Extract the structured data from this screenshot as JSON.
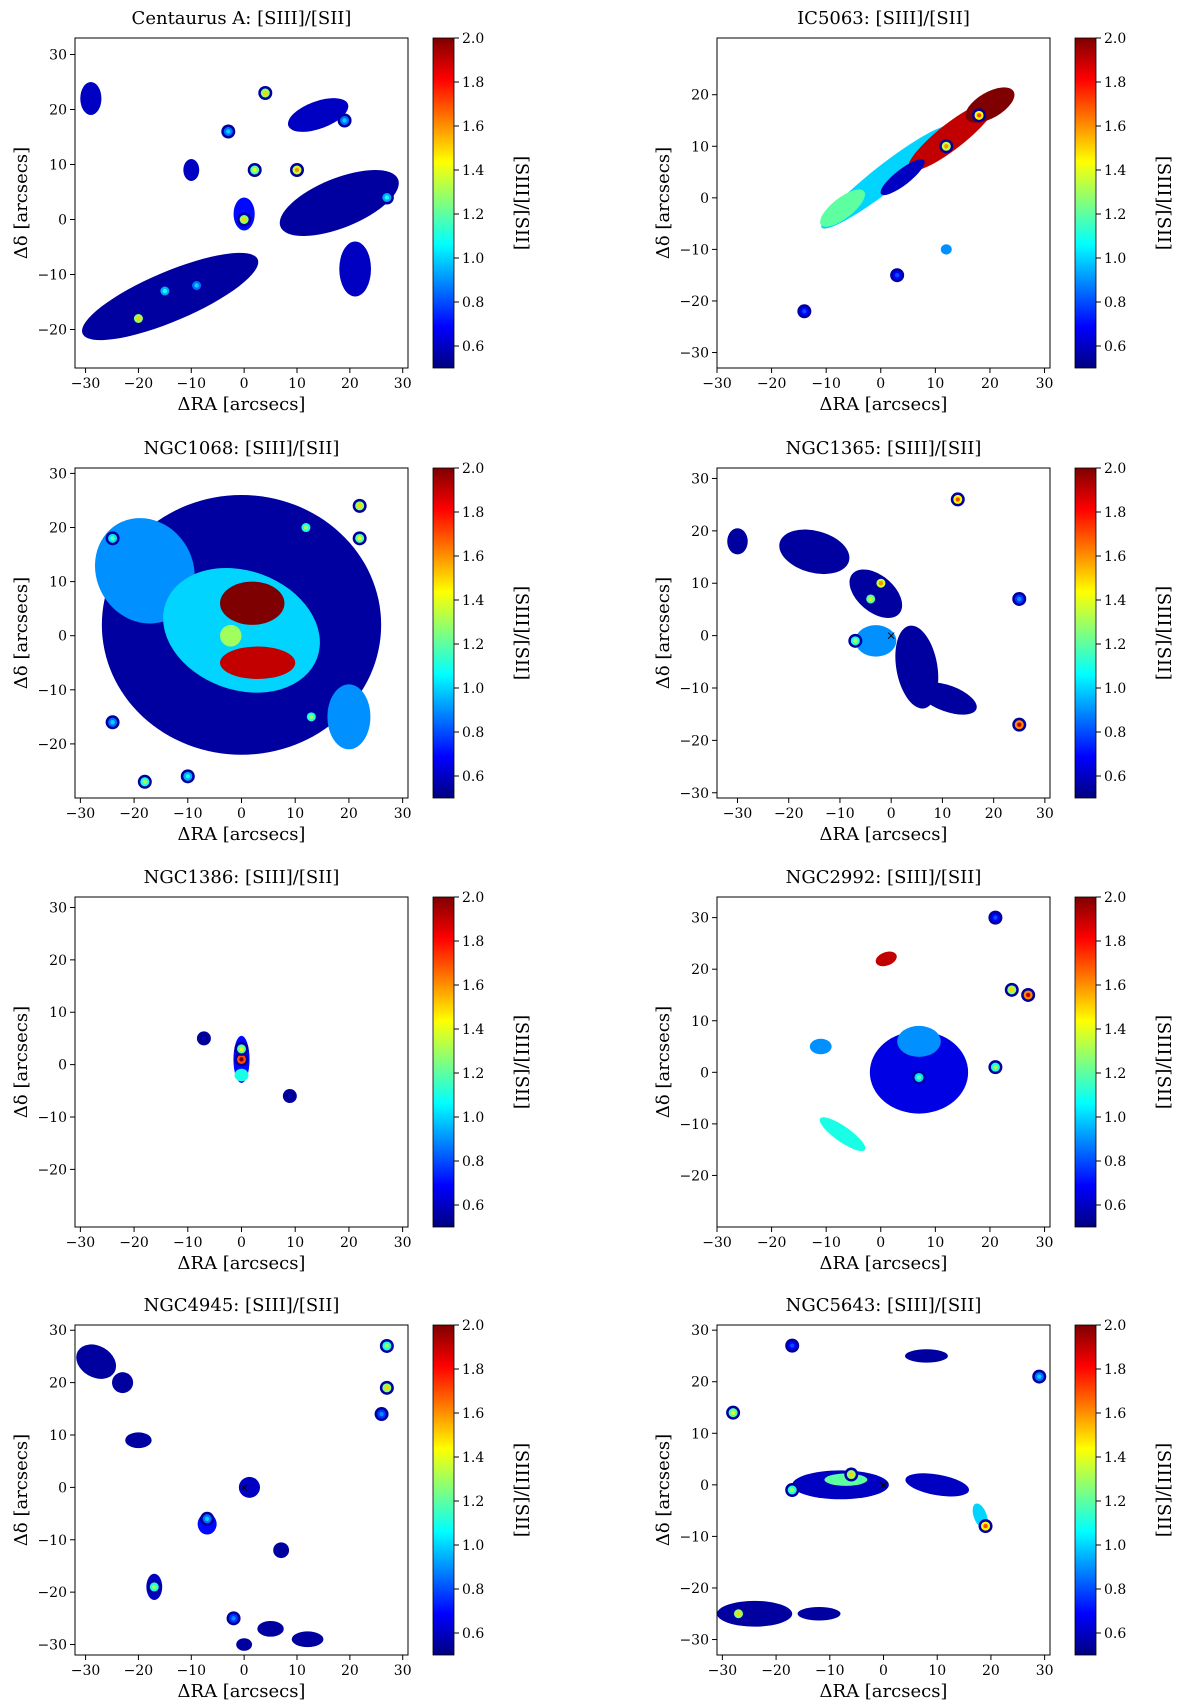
{
  "figure": {
    "colorbar_ticks": [
      "2.0",
      "1.8",
      "1.6",
      "1.4",
      "1.2",
      "1.0",
      "0.8",
      "0.6"
    ],
    "colorbar_label": "[SIII]/[SII]",
    "xlabel": "ΔRA [arcsecs]",
    "ylabel": "Δδ [arcsecs]",
    "colormap": [
      "#00007f",
      "#0000ff",
      "#007fff",
      "#00ffff",
      "#7fff7f",
      "#ffff00",
      "#ff7f00",
      "#ff0000",
      "#7f0000"
    ]
  },
  "chart_data": [
    {
      "type": "heatmap",
      "title": "Centaurus A: [SIII]/[SII]",
      "xlabel": "ΔRA [arcsecs]",
      "ylabel": "Δδ [arcsecs]",
      "xlim": [
        -32,
        31
      ],
      "ylim": [
        -27,
        33
      ],
      "xticks": [
        -30,
        -20,
        -10,
        0,
        10,
        20,
        30
      ],
      "yticks": [
        -20,
        -10,
        0,
        10,
        20,
        30
      ],
      "clim": [
        0.5,
        2.0
      ],
      "colorbar_ticks": [
        0.6,
        0.8,
        1.0,
        1.2,
        1.4,
        1.6,
        1.8,
        2.0
      ],
      "colorbar_label": "[SIII]/[SII]",
      "regions": [
        {
          "x": -14,
          "y": -14,
          "rx": 18,
          "ry": 4.5,
          "rot": 23,
          "v": 0.55
        },
        {
          "x": 18,
          "y": 3,
          "rx": 12,
          "ry": 4.5,
          "rot": 22,
          "v": 0.55
        },
        {
          "x": 14,
          "y": 19,
          "rx": 6,
          "ry": 2.5,
          "rot": 20,
          "v": 0.6
        },
        {
          "x": 21,
          "y": -9,
          "rx": 3,
          "ry": 5,
          "rot": 0,
          "v": 0.6
        },
        {
          "x": -29,
          "y": 22,
          "rx": 2,
          "ry": 3,
          "rot": 0,
          "v": 0.6
        },
        {
          "x": 0,
          "y": 1,
          "rx": 2,
          "ry": 3,
          "rot": 0,
          "v": 0.7
        },
        {
          "x": -10,
          "y": 9,
          "rx": 1.5,
          "ry": 2,
          "rot": 0,
          "v": 0.6
        }
      ],
      "knots": [
        {
          "x": -20,
          "y": -18,
          "v": 1.5
        },
        {
          "x": -15,
          "y": -13,
          "v": 1.1
        },
        {
          "x": -9,
          "y": -12,
          "v": 1.0
        },
        {
          "x": 10,
          "y": 9,
          "v": 1.6
        },
        {
          "x": 2,
          "y": 9,
          "v": 1.4
        },
        {
          "x": 4,
          "y": 23,
          "v": 1.5
        },
        {
          "x": 27,
          "y": 4,
          "v": 1.1
        },
        {
          "x": 19,
          "y": 18,
          "v": 1.0
        },
        {
          "x": 0,
          "y": 0,
          "v": 1.5
        },
        {
          "x": -3,
          "y": 16,
          "v": 1.0
        }
      ]
    },
    {
      "type": "heatmap",
      "title": "IC5063: [SIII]/[SII]",
      "xlabel": "ΔRA [arcsecs]",
      "ylabel": "Δδ [arcsecs]",
      "xlim": [
        -30,
        31
      ],
      "ylim": [
        -33,
        31
      ],
      "xticks": [
        -30,
        -20,
        -10,
        0,
        10,
        20,
        30
      ],
      "yticks": [
        -30,
        -20,
        -10,
        0,
        10,
        20
      ],
      "clim": [
        0.5,
        2.0
      ],
      "colorbar_ticks": [
        0.6,
        0.8,
        1.0,
        1.2,
        1.4,
        1.6,
        1.8,
        2.0
      ],
      "colorbar_label": "[SIII]/[SII]",
      "regions": [
        {
          "x": 1,
          "y": 4,
          "rx": 15,
          "ry": 2.5,
          "rot": 38,
          "v": 1.0
        },
        {
          "x": 13,
          "y": 12,
          "rx": 10,
          "ry": 2.5,
          "rot": 38,
          "v": 1.9
        },
        {
          "x": 20,
          "y": 18,
          "rx": 5,
          "ry": 2.5,
          "rot": 30,
          "v": 2.0
        },
        {
          "x": -7,
          "y": -2,
          "rx": 5,
          "ry": 2,
          "rot": 38,
          "v": 1.2
        },
        {
          "x": 4,
          "y": 4,
          "rx": 5,
          "ry": 1.5,
          "rot": 38,
          "v": 0.6
        },
        {
          "x": 12,
          "y": -10,
          "rx": 1,
          "ry": 1,
          "rot": 0,
          "v": 0.9
        }
      ],
      "knots": [
        {
          "x": 12,
          "y": 10,
          "v": 1.6
        },
        {
          "x": 18,
          "y": 16,
          "v": 1.7
        },
        {
          "x": -14,
          "y": -22,
          "v": 0.8
        },
        {
          "x": 3,
          "y": -15,
          "v": 0.8
        }
      ]
    },
    {
      "type": "heatmap",
      "title": "NGC1068: [SIII]/[SII]",
      "xlabel": "ΔRA [arcsecs]",
      "ylabel": "Δδ [arcsecs]",
      "xlim": [
        -31,
        31
      ],
      "ylim": [
        -30,
        31
      ],
      "xticks": [
        -30,
        -20,
        -10,
        0,
        10,
        20,
        30
      ],
      "yticks": [
        -20,
        -10,
        0,
        10,
        20,
        30
      ],
      "clim": [
        0.5,
        2.0
      ],
      "colorbar_ticks": [
        0.6,
        0.8,
        1.0,
        1.2,
        1.4,
        1.6,
        1.8,
        2.0
      ],
      "colorbar_label": "[SIII]/[SII]",
      "regions": [
        {
          "x": 0,
          "y": 2,
          "rx": 26,
          "ry": 24,
          "rot": 0,
          "v": 0.55
        },
        {
          "x": -18,
          "y": 12,
          "rx": 9,
          "ry": 10,
          "rot": 30,
          "v": 0.9
        },
        {
          "x": 0,
          "y": 1,
          "rx": 15,
          "ry": 11,
          "rot": -20,
          "v": 1.0
        },
        {
          "x": 2,
          "y": 6,
          "rx": 6,
          "ry": 4,
          "rot": 0,
          "v": 2.0
        },
        {
          "x": 3,
          "y": -5,
          "rx": 7,
          "ry": 3,
          "rot": 0,
          "v": 1.9
        },
        {
          "x": -2,
          "y": 0,
          "rx": 2,
          "ry": 2,
          "rot": 0,
          "v": 1.3
        },
        {
          "x": 20,
          "y": -15,
          "rx": 4,
          "ry": 6,
          "rot": 0,
          "v": 0.9
        }
      ],
      "knots": [
        {
          "x": 22,
          "y": 24,
          "v": 1.5
        },
        {
          "x": 22,
          "y": 18,
          "v": 1.4
        },
        {
          "x": 12,
          "y": 20,
          "v": 1.3
        },
        {
          "x": -24,
          "y": 18,
          "v": 1.2
        },
        {
          "x": -18,
          "y": -27,
          "v": 1.3
        },
        {
          "x": -10,
          "y": -26,
          "v": 1.1
        },
        {
          "x": 13,
          "y": -15,
          "v": 1.3
        },
        {
          "x": -24,
          "y": -16,
          "v": 1.0
        }
      ]
    },
    {
      "type": "heatmap",
      "title": "NGC1365: [SIII]/[SII]",
      "xlabel": "ΔRA [arcsecs]",
      "ylabel": "Δδ [arcsecs]",
      "xlim": [
        -34,
        31
      ],
      "ylim": [
        -31,
        32
      ],
      "xticks": [
        -30,
        -20,
        -10,
        0,
        10,
        20,
        30
      ],
      "yticks": [
        -30,
        -20,
        -10,
        0,
        10,
        20,
        30
      ],
      "clim": [
        0.5,
        2.0
      ],
      "colorbar_ticks": [
        0.6,
        0.8,
        1.0,
        1.2,
        1.4,
        1.6,
        1.8,
        2.0
      ],
      "colorbar_label": "[SIII]/[SII]",
      "regions": [
        {
          "x": -30,
          "y": 18,
          "rx": 2,
          "ry": 2.5,
          "rot": 0,
          "v": 0.55
        },
        {
          "x": -15,
          "y": 16,
          "rx": 7,
          "ry": 4,
          "rot": -15,
          "v": 0.55
        },
        {
          "x": -3,
          "y": 8,
          "rx": 6,
          "ry": 3.5,
          "rot": -40,
          "v": 0.55
        },
        {
          "x": 5,
          "y": -6,
          "rx": 4,
          "ry": 8,
          "rot": 10,
          "v": 0.55
        },
        {
          "x": 11,
          "y": -12,
          "rx": 6,
          "ry": 2.5,
          "rot": -20,
          "v": 0.55
        },
        {
          "x": -3,
          "y": -1,
          "rx": 4,
          "ry": 3,
          "rot": 0,
          "v": 0.9
        }
      ],
      "knots": [
        {
          "x": -2,
          "y": 10,
          "v": 1.6
        },
        {
          "x": -4,
          "y": 7,
          "v": 1.4
        },
        {
          "x": 13,
          "y": 26,
          "v": 1.7
        },
        {
          "x": 25,
          "y": -17,
          "v": 1.9
        },
        {
          "x": 25,
          "y": 7,
          "v": 0.9
        },
        {
          "x": -7,
          "y": -1,
          "v": 1.3
        }
      ],
      "markers": [
        {
          "x": 0,
          "y": 0,
          "symbol": "×"
        }
      ]
    },
    {
      "type": "heatmap",
      "title": "NGC1386: [SIII]/[SII]",
      "xlabel": "ΔRA [arcsecs]",
      "ylabel": "Δδ [arcsecs]",
      "xlim": [
        -31,
        31
      ],
      "ylim": [
        -31,
        32
      ],
      "xticks": [
        -30,
        -20,
        -10,
        0,
        10,
        20,
        30
      ],
      "yticks": [
        -20,
        -10,
        0,
        10,
        20,
        30
      ],
      "clim": [
        0.5,
        2.0
      ],
      "colorbar_ticks": [
        0.6,
        0.8,
        1.0,
        1.2,
        1.4,
        1.6,
        1.8,
        2.0
      ],
      "colorbar_label": "[SIII]/[SII]",
      "regions": [
        {
          "x": 0,
          "y": 1,
          "rx": 1.5,
          "ry": 4.5,
          "rot": 0,
          "v": 0.7
        },
        {
          "x": 0,
          "y": -2,
          "rx": 1.3,
          "ry": 1.2,
          "rot": 0,
          "v": 1.1
        }
      ],
      "knots": [
        {
          "x": 0,
          "y": 1,
          "v": 2.0
        },
        {
          "x": 0,
          "y": 3,
          "v": 1.4
        },
        {
          "x": 9,
          "y": -6,
          "v": 0.6
        },
        {
          "x": -7,
          "y": 5,
          "v": 0.6
        }
      ]
    },
    {
      "type": "heatmap",
      "title": "NGC2992: [SIII]/[SII]",
      "xlabel": "ΔRA [arcsecs]",
      "ylabel": "Δδ [arcsecs]",
      "xlim": [
        -30,
        31
      ],
      "ylim": [
        -30,
        34
      ],
      "xticks": [
        -30,
        -20,
        -10,
        0,
        10,
        20,
        30
      ],
      "yticks": [
        -20,
        -10,
        0,
        10,
        20,
        30
      ],
      "clim": [
        0.5,
        2.0
      ],
      "colorbar_ticks": [
        0.6,
        0.8,
        1.0,
        1.2,
        1.4,
        1.6,
        1.8,
        2.0
      ],
      "colorbar_label": "[SIII]/[SII]",
      "regions": [
        {
          "x": 7,
          "y": 0,
          "rx": 9,
          "ry": 8,
          "rot": 0,
          "v": 0.65
        },
        {
          "x": 7,
          "y": 6,
          "rx": 4,
          "ry": 3,
          "rot": 0,
          "v": 0.9
        },
        {
          "x": -7,
          "y": -12,
          "rx": 5,
          "ry": 1.5,
          "rot": -35,
          "v": 1.1
        },
        {
          "x": -11,
          "y": 5,
          "rx": 2,
          "ry": 1.5,
          "rot": 0,
          "v": 0.9
        },
        {
          "x": 1,
          "y": 22,
          "rx": 2,
          "ry": 1.3,
          "rot": 20,
          "v": 1.9
        }
      ],
      "knots": [
        {
          "x": 24,
          "y": 16,
          "v": 1.5
        },
        {
          "x": 27,
          "y": 15,
          "v": 1.9
        },
        {
          "x": 21,
          "y": 30,
          "v": 0.8
        },
        {
          "x": 7,
          "y": -1,
          "v": 1.2
        },
        {
          "x": 21,
          "y": 1,
          "v": 1.3
        }
      ]
    },
    {
      "type": "heatmap",
      "title": "NGC4945: [SIII]/[SII]",
      "xlabel": "ΔRA [arcsecs]",
      "ylabel": "Δδ [arcsecs]",
      "xlim": [
        -32,
        31
      ],
      "ylim": [
        -32,
        31
      ],
      "xticks": [
        -30,
        -20,
        -10,
        0,
        10,
        20,
        30
      ],
      "yticks": [
        -30,
        -20,
        -10,
        0,
        10,
        20,
        30
      ],
      "clim": [
        0.5,
        2.0
      ],
      "colorbar_ticks": [
        0.6,
        0.8,
        1.0,
        1.2,
        1.4,
        1.6,
        1.8,
        2.0
      ],
      "colorbar_label": "[SIII]/[SII]",
      "regions": [
        {
          "x": -28,
          "y": 24,
          "rx": 4,
          "ry": 3,
          "rot": -30,
          "v": 0.55
        },
        {
          "x": -23,
          "y": 20,
          "rx": 2,
          "ry": 2,
          "rot": 0,
          "v": 0.55
        },
        {
          "x": -20,
          "y": 9,
          "rx": 2.5,
          "ry": 1.5,
          "rot": 0,
          "v": 0.55
        },
        {
          "x": -7,
          "y": -7,
          "rx": 1.8,
          "ry": 2,
          "rot": 0,
          "v": 0.7
        },
        {
          "x": -17,
          "y": -19,
          "rx": 1.5,
          "ry": 2.5,
          "rot": 0,
          "v": 0.6
        },
        {
          "x": 5,
          "y": -27,
          "rx": 2.5,
          "ry": 1.5,
          "rot": 0,
          "v": 0.55
        },
        {
          "x": 12,
          "y": -29,
          "rx": 3,
          "ry": 1.5,
          "rot": 0,
          "v": 0.55
        },
        {
          "x": 0,
          "y": -30,
          "rx": 1.5,
          "ry": 1.2,
          "rot": 0,
          "v": 0.55
        },
        {
          "x": 1,
          "y": 0,
          "rx": 2,
          "ry": 2,
          "rot": 0,
          "v": 0.6
        },
        {
          "x": 7,
          "y": -12,
          "rx": 1.5,
          "ry": 1.5,
          "rot": 0,
          "v": 0.55
        }
      ],
      "knots": [
        {
          "x": 27,
          "y": 27,
          "v": 1.3
        },
        {
          "x": 27,
          "y": 19,
          "v": 1.5
        },
        {
          "x": -17,
          "y": -19,
          "v": 1.3
        },
        {
          "x": -2,
          "y": -25,
          "v": 0.9
        },
        {
          "x": 26,
          "y": 14,
          "v": 0.9
        },
        {
          "x": -7,
          "y": -6,
          "v": 1.0
        }
      ],
      "markers": [
        {
          "x": 0,
          "y": 0,
          "symbol": "×"
        }
      ]
    },
    {
      "type": "heatmap",
      "title": "NGC5643: [SIII]/[SII]",
      "xlabel": "ΔRA [arcsecs]",
      "ylabel": "Δδ [arcsecs]",
      "xlim": [
        -31,
        31
      ],
      "ylim": [
        -33,
        31
      ],
      "xticks": [
        -30,
        -20,
        -10,
        0,
        10,
        20,
        30
      ],
      "yticks": [
        -30,
        -20,
        -10,
        0,
        10,
        20,
        30
      ],
      "clim": [
        0.5,
        2.0
      ],
      "colorbar_ticks": [
        0.6,
        0.8,
        1.0,
        1.2,
        1.4,
        1.6,
        1.8,
        2.0
      ],
      "colorbar_label": "[SIII]/[SII]",
      "regions": [
        {
          "x": -8,
          "y": 0,
          "rx": 9,
          "ry": 2.8,
          "rot": 0,
          "v": 0.6
        },
        {
          "x": 10,
          "y": 0,
          "rx": 6,
          "ry": 2,
          "rot": -10,
          "v": 0.6
        },
        {
          "x": -24,
          "y": -25,
          "rx": 7,
          "ry": 2.5,
          "rot": 0,
          "v": 0.55
        },
        {
          "x": -7,
          "y": 1,
          "rx": 4,
          "ry": 1.2,
          "rot": 0,
          "v": 1.2
        },
        {
          "x": 8,
          "y": 25,
          "rx": 4,
          "ry": 1.3,
          "rot": 0,
          "v": 0.55
        },
        {
          "x": 18,
          "y": -6,
          "rx": 1.2,
          "ry": 2.5,
          "rot": 20,
          "v": 1.0
        },
        {
          "x": -12,
          "y": -25,
          "rx": 4,
          "ry": 1.3,
          "rot": 0,
          "v": 0.55
        }
      ],
      "knots": [
        {
          "x": -6,
          "y": 2,
          "v": 1.5
        },
        {
          "x": -17,
          "y": -1,
          "v": 1.3
        },
        {
          "x": -27,
          "y": -25,
          "v": 1.5
        },
        {
          "x": 29,
          "y": 21,
          "v": 1.0
        },
        {
          "x": 19,
          "y": -8,
          "v": 1.7
        },
        {
          "x": -28,
          "y": 14,
          "v": 1.4
        },
        {
          "x": -17,
          "y": 27,
          "v": 0.8
        }
      ],
      "markers": [
        {
          "x": 0,
          "y": 0,
          "symbol": "×"
        }
      ]
    }
  ]
}
